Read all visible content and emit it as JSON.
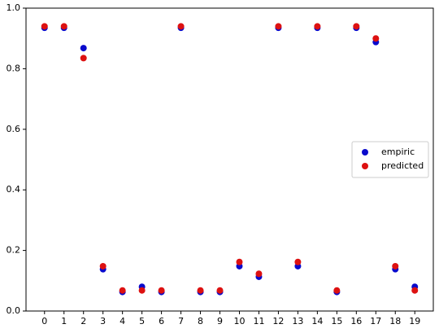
{
  "chart_data": {
    "type": "scatter",
    "x": [
      0,
      1,
      2,
      3,
      4,
      5,
      6,
      7,
      8,
      9,
      10,
      11,
      12,
      13,
      14,
      15,
      16,
      17,
      18,
      19
    ],
    "series": [
      {
        "name": "empiric",
        "color": "#0a0acc",
        "values": [
          0.935,
          0.935,
          0.868,
          0.138,
          0.063,
          0.08,
          0.063,
          0.935,
          0.063,
          0.063,
          0.148,
          0.113,
          0.935,
          0.148,
          0.935,
          0.063,
          0.935,
          0.888,
          0.138,
          0.08
        ]
      },
      {
        "name": "predicted",
        "color": "#dd1111",
        "values": [
          0.94,
          0.94,
          0.835,
          0.148,
          0.068,
          0.068,
          0.068,
          0.94,
          0.068,
          0.068,
          0.162,
          0.123,
          0.94,
          0.162,
          0.94,
          0.068,
          0.94,
          0.9,
          0.148,
          0.068
        ]
      }
    ],
    "xlim": [
      -0.95,
      19.95
    ],
    "xticks": [
      0,
      1,
      2,
      3,
      4,
      5,
      6,
      7,
      8,
      9,
      10,
      11,
      12,
      13,
      14,
      15,
      16,
      17,
      18,
      19
    ],
    "ylim": [
      0,
      1
    ],
    "yticks": [
      {
        "value": 0,
        "label": "0.0"
      },
      0.2,
      0.4,
      0.6,
      0.8,
      {
        "value": 1,
        "label": "1.0"
      }
    ],
    "legend": "center right"
  }
}
